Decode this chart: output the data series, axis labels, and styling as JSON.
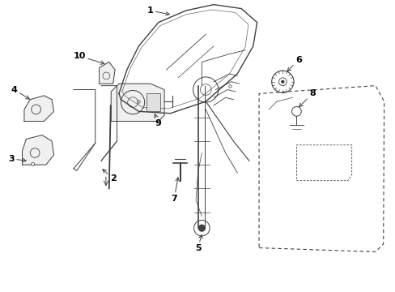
{
  "bg_color": "#ffffff",
  "line_color": "#404040",
  "label_color": "#000000",
  "figsize": [
    4.89,
    3.6
  ],
  "dpi": 100,
  "xlim": [
    0,
    10
  ],
  "ylim": [
    0,
    7.35
  ]
}
